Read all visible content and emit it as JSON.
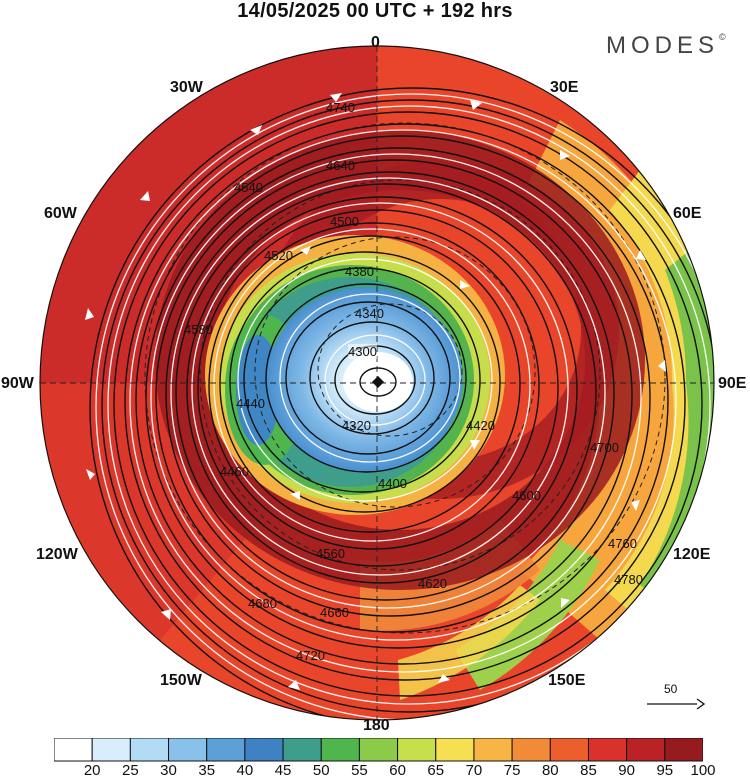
{
  "header": {
    "title": "14/05/2025  00 UTC  + 192 hrs",
    "brand": "MODES",
    "brand_mark": "©"
  },
  "map": {
    "projection": "polar-stereographic-north",
    "longitude_labels": {
      "n": "0",
      "nne": "30E",
      "ene": "60E",
      "e": "90E",
      "ese": "120E",
      "sse": "150E",
      "s": "180",
      "ssw": "150W",
      "wsw": "120W",
      "w": "90W",
      "wnw": "60W",
      "nnw": "30W"
    },
    "contour_labels": [
      "4300",
      "4320",
      "4340",
      "4380",
      "4400",
      "4420",
      "4440",
      "4460",
      "4500",
      "4520",
      "4540",
      "4560",
      "4580",
      "4600",
      "4620",
      "4640",
      "4660",
      "4680",
      "4700",
      "4720",
      "4740",
      "4760",
      "4780"
    ],
    "contour_interval": 20,
    "wind_reference": {
      "label": "50",
      "arrow_icon": "reference-vector-arrow"
    }
  },
  "colorbar": {
    "ticks": [
      "20",
      "25",
      "30",
      "35",
      "40",
      "45",
      "50",
      "55",
      "60",
      "65",
      "70",
      "75",
      "80",
      "85",
      "90",
      "95",
      "100"
    ],
    "colors": [
      "#ffffff",
      "#d8eefc",
      "#b2dcf6",
      "#88c1ea",
      "#5ca0d6",
      "#3f82c4",
      "#3e9e8c",
      "#4fb64e",
      "#8ccb4a",
      "#c6df4c",
      "#f7df52",
      "#f6b545",
      "#f28b37",
      "#ec5f2c",
      "#d9322a",
      "#bb2226",
      "#961b1f"
    ]
  }
}
